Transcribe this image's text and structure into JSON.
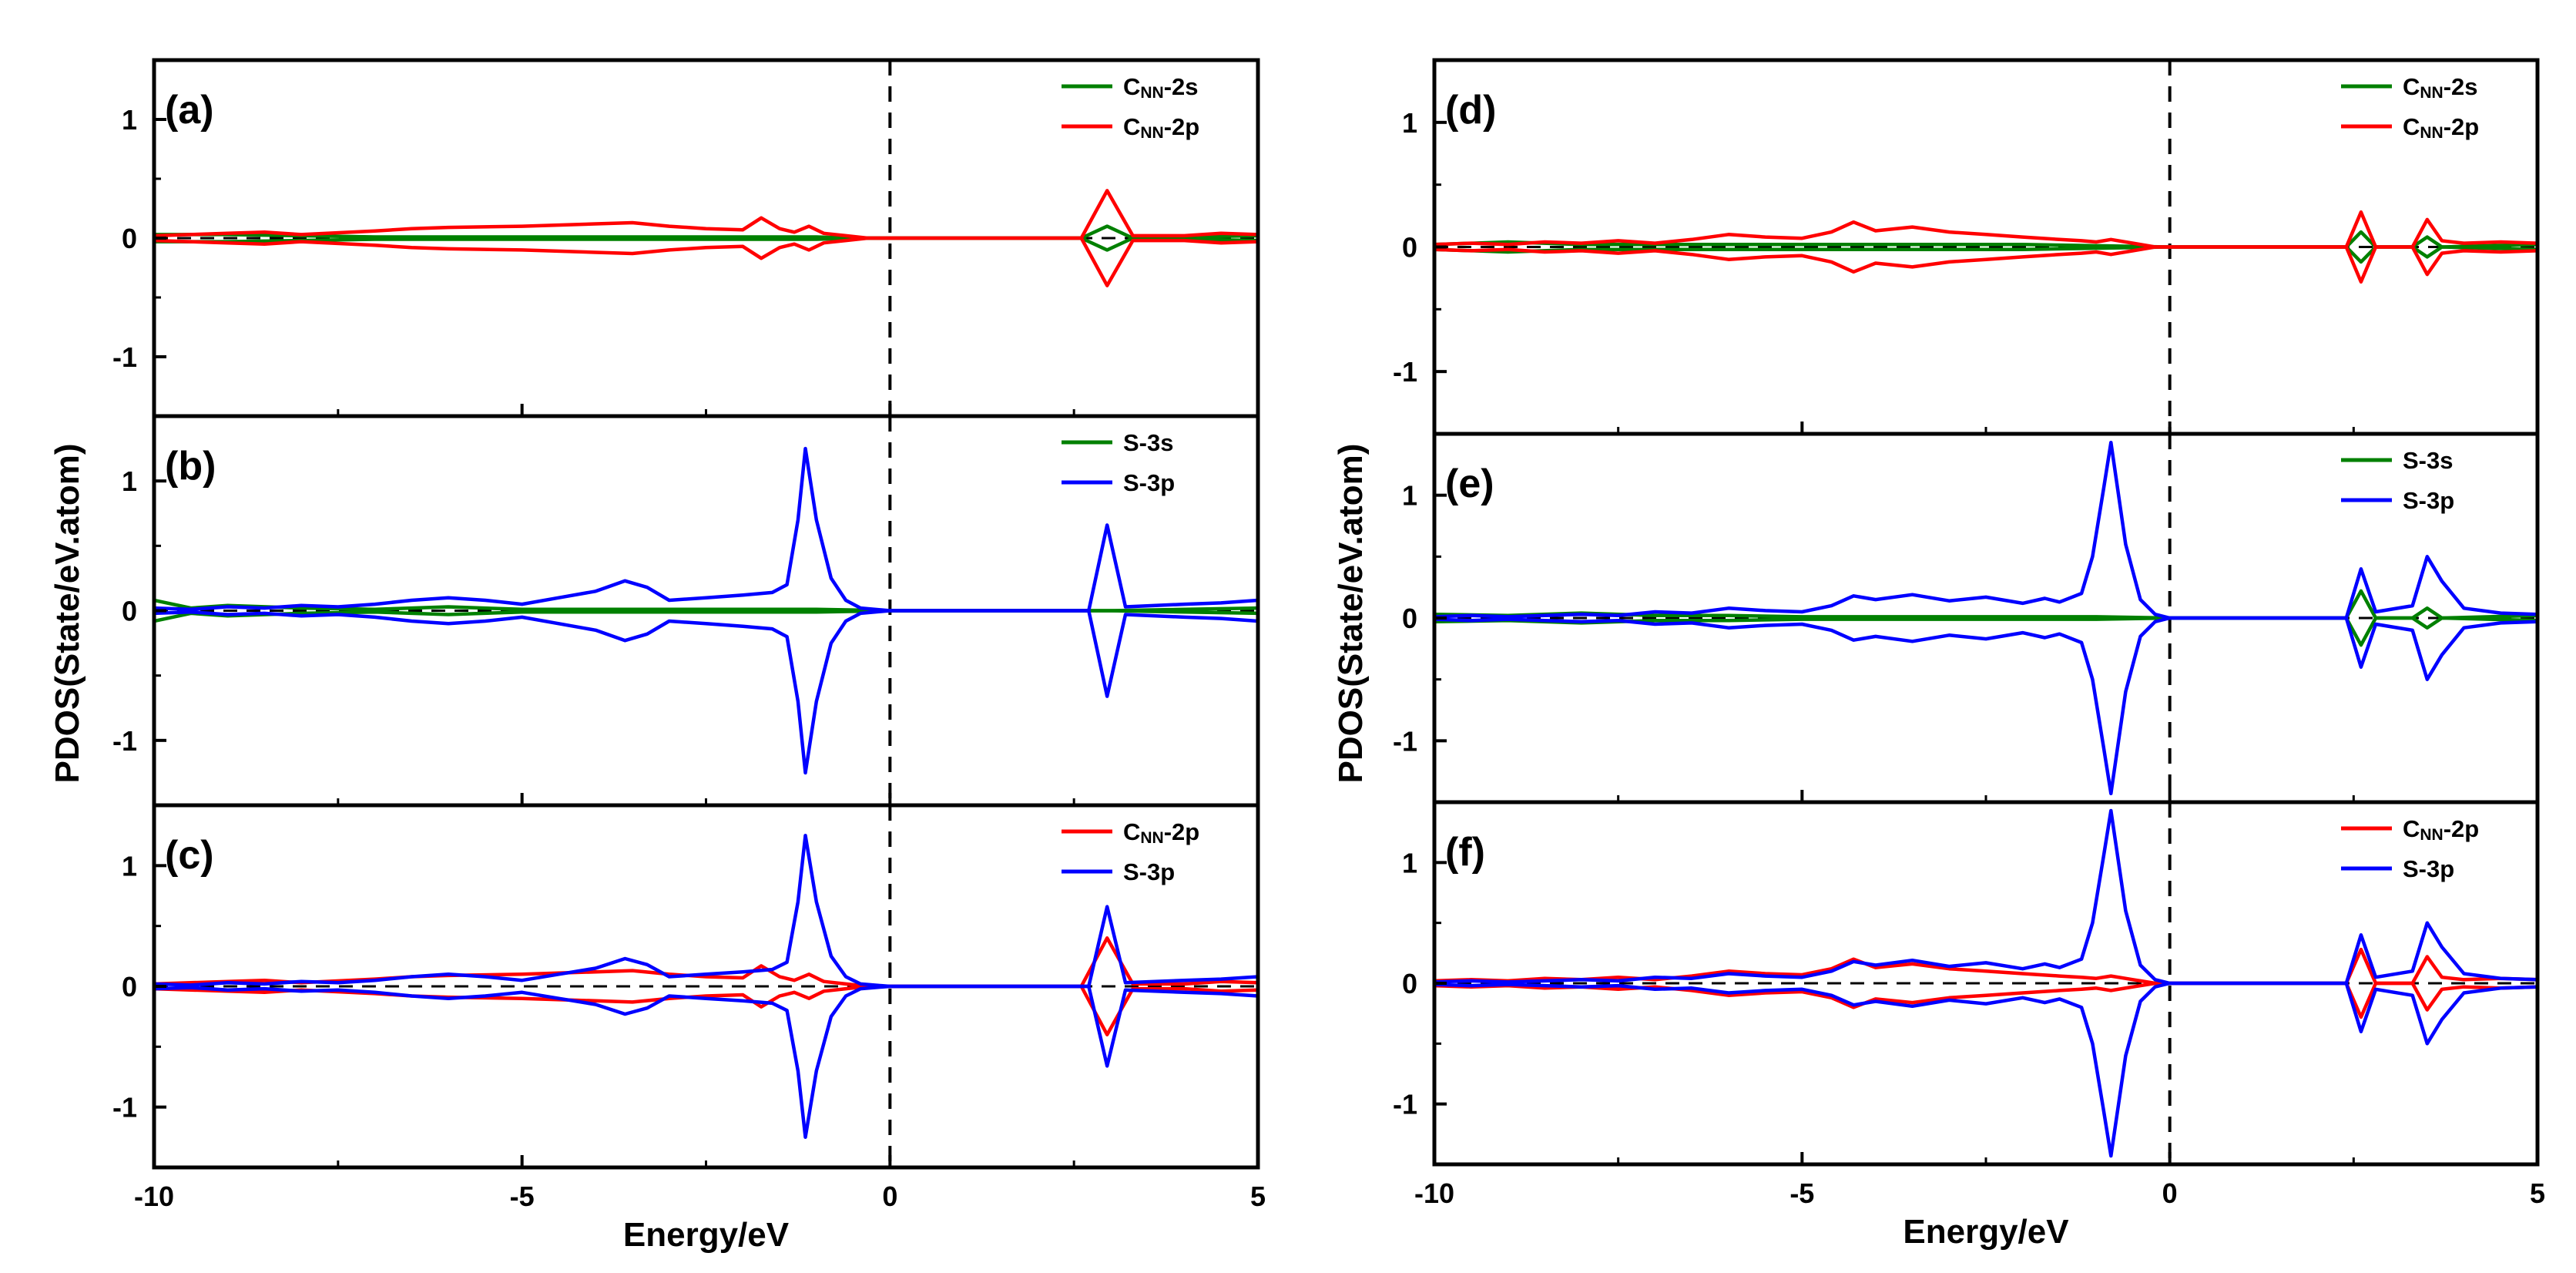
{
  "chart_data": [
    {
      "type": "line",
      "panel_label": "(a)",
      "x_label": "Energy/eV",
      "y_label": "PDOS(State/eV.atom)",
      "xlim": [
        -10,
        5
      ],
      "ylim": [
        -1.5,
        1.5
      ],
      "x_ticks": [
        "-10",
        "-5",
        "0",
        "5"
      ],
      "y_ticks": [
        "1",
        "0",
        "-1"
      ],
      "fermi_level_line": 0,
      "legend_position": "top-right",
      "spin_symmetric": true,
      "series": [
        {
          "name_main": "C",
          "name_sub": "NN",
          "name_suffix": "-2s",
          "color": "#008000",
          "x": [
            -10,
            -9.0,
            -8.0,
            -7.0,
            -6.0,
            -5.0,
            -4.0,
            -3.0,
            -2.0,
            -1.0,
            -0.5,
            0,
            2.6,
            2.95,
            3.3,
            4.0,
            5.0
          ],
          "y": [
            0.03,
            0.03,
            0.02,
            0.01,
            0.01,
            0.01,
            0.01,
            0.01,
            0.01,
            0.01,
            0,
            0,
            0,
            0.1,
            0,
            0.01,
            0.02
          ]
        },
        {
          "name_main": "C",
          "name_sub": "NN",
          "name_suffix": "-2p",
          "color": "#ff0000",
          "x": [
            -10,
            -9.0,
            -8.5,
            -8.0,
            -7.0,
            -6.5,
            -6.0,
            -5.0,
            -4.0,
            -3.5,
            -3.0,
            -2.5,
            -2.0,
            -1.75,
            -1.5,
            -1.3,
            -1.1,
            -0.9,
            -0.6,
            -0.3,
            0,
            2.6,
            2.95,
            3.3,
            4.0,
            4.5,
            5.0
          ],
          "y": [
            0.02,
            0.04,
            0.05,
            0.03,
            0.06,
            0.08,
            0.09,
            0.1,
            0.12,
            0.13,
            0.1,
            0.08,
            0.07,
            0.17,
            0.08,
            0.05,
            0.1,
            0.04,
            0.02,
            0,
            0,
            0,
            0.4,
            0.02,
            0.02,
            0.04,
            0.03
          ]
        }
      ]
    },
    {
      "type": "line",
      "panel_label": "(b)",
      "x_label": "Energy/eV",
      "xlim": [
        -10,
        5
      ],
      "ylim": [
        -1.5,
        1.5
      ],
      "x_ticks": [
        "-10",
        "-5",
        "0",
        "5"
      ],
      "y_ticks": [
        "1",
        "0",
        "-1"
      ],
      "fermi_level_line": 0,
      "legend_position": "top-right",
      "spin_symmetric": true,
      "series": [
        {
          "name_main": "S-3s",
          "name_sub": "",
          "name_suffix": "",
          "color": "#008000",
          "x": [
            -10,
            -9.5,
            -9.0,
            -8.0,
            -7.0,
            -6.0,
            -5.0,
            -4.0,
            -3.0,
            -2.0,
            -1.0,
            0,
            3.0,
            5.0
          ],
          "y": [
            0.08,
            0.02,
            0.04,
            0.02,
            0.01,
            0.03,
            0.01,
            0.01,
            0.01,
            0.01,
            0.01,
            0,
            0,
            0.02
          ]
        },
        {
          "name_main": "S-3p",
          "name_sub": "",
          "name_suffix": "",
          "color": "#0000ff",
          "x": [
            -10,
            -9.5,
            -9.0,
            -8.5,
            -8.0,
            -7.5,
            -7.0,
            -6.5,
            -6.0,
            -5.5,
            -5.0,
            -4.5,
            -4.0,
            -3.6,
            -3.3,
            -3.0,
            -2.5,
            -2.0,
            -1.6,
            -1.4,
            -1.25,
            -1.15,
            -1.0,
            -0.8,
            -0.6,
            -0.4,
            0,
            2.7,
            2.95,
            3.2,
            4.0,
            4.5,
            5.0
          ],
          "y": [
            0.02,
            0.01,
            0.03,
            0.02,
            0.04,
            0.03,
            0.05,
            0.08,
            0.1,
            0.08,
            0.05,
            0.1,
            0.15,
            0.23,
            0.18,
            0.08,
            0.1,
            0.12,
            0.14,
            0.2,
            0.7,
            1.25,
            0.7,
            0.25,
            0.08,
            0.02,
            0,
            0,
            0.66,
            0.03,
            0.05,
            0.06,
            0.08
          ]
        }
      ]
    },
    {
      "type": "line",
      "panel_label": "(c)",
      "x_label": "Energy/eV",
      "xlim": [
        -10,
        5
      ],
      "ylim": [
        -1.5,
        1.5
      ],
      "x_ticks": [
        "-10",
        "-5",
        "0",
        "5"
      ],
      "y_ticks": [
        "1",
        "0",
        "-1"
      ],
      "fermi_level_line": 0,
      "legend_position": "top-right",
      "spin_symmetric": true,
      "series": [
        {
          "name_main": "C",
          "name_sub": "NN",
          "name_suffix": "-2p",
          "color": "#ff0000",
          "x": [
            -10,
            -9.0,
            -8.5,
            -8.0,
            -7.0,
            -6.5,
            -6.0,
            -5.0,
            -4.0,
            -3.5,
            -3.0,
            -2.5,
            -2.0,
            -1.75,
            -1.5,
            -1.3,
            -1.1,
            -0.9,
            -0.6,
            -0.3,
            0,
            2.6,
            2.95,
            3.3,
            4.0,
            4.5,
            5.0
          ],
          "y": [
            0.02,
            0.04,
            0.05,
            0.03,
            0.06,
            0.08,
            0.09,
            0.1,
            0.12,
            0.13,
            0.1,
            0.08,
            0.07,
            0.17,
            0.08,
            0.05,
            0.1,
            0.04,
            0.02,
            0,
            0,
            0,
            0.4,
            0.02,
            0.02,
            0.04,
            0.03
          ]
        },
        {
          "name_main": "S-3p",
          "name_sub": "",
          "name_suffix": "",
          "color": "#0000ff",
          "x": [
            -10,
            -9.5,
            -9.0,
            -8.5,
            -8.0,
            -7.5,
            -7.0,
            -6.5,
            -6.0,
            -5.5,
            -5.0,
            -4.5,
            -4.0,
            -3.6,
            -3.3,
            -3.0,
            -2.5,
            -2.0,
            -1.6,
            -1.4,
            -1.25,
            -1.15,
            -1.0,
            -0.8,
            -0.6,
            -0.4,
            0,
            2.7,
            2.95,
            3.2,
            4.0,
            4.5,
            5.0
          ],
          "y": [
            0.02,
            0.01,
            0.03,
            0.02,
            0.04,
            0.03,
            0.05,
            0.08,
            0.1,
            0.08,
            0.05,
            0.1,
            0.15,
            0.23,
            0.18,
            0.08,
            0.1,
            0.12,
            0.14,
            0.2,
            0.7,
            1.25,
            0.7,
            0.25,
            0.08,
            0.02,
            0,
            0,
            0.66,
            0.03,
            0.05,
            0.06,
            0.08
          ]
        }
      ]
    },
    {
      "type": "line",
      "panel_label": "(d)",
      "x_label": "Energy/eV",
      "y_label": "PDOS(State/eV.atom)",
      "xlim": [
        -10,
        5
      ],
      "ylim": [
        -1.5,
        1.5
      ],
      "x_ticks": [
        "-10",
        "-5",
        "0",
        "5"
      ],
      "y_ticks": [
        "1",
        "0",
        "-1"
      ],
      "fermi_level_line": 0,
      "legend_position": "top-right",
      "spin_symmetric": true,
      "series": [
        {
          "name_main": "C",
          "name_sub": "NN",
          "name_suffix": "-2s",
          "color": "#008000",
          "x": [
            -10,
            -9.0,
            -8.0,
            -7.0,
            -6.0,
            -5.0,
            -4.0,
            -3.0,
            -2.0,
            -1.0,
            0,
            2.4,
            2.6,
            2.8,
            3.3,
            3.5,
            3.7,
            5.0
          ],
          "y": [
            0.02,
            0.04,
            0.02,
            0.02,
            0.02,
            0.02,
            0.02,
            0.02,
            0.02,
            0.01,
            0,
            0,
            0.12,
            0,
            0,
            0.08,
            0,
            0.02
          ]
        },
        {
          "name_main": "C",
          "name_sub": "NN",
          "name_suffix": "-2p",
          "color": "#ff0000",
          "x": [
            -10,
            -9.5,
            -9.0,
            -8.5,
            -8.0,
            -7.5,
            -7.0,
            -6.5,
            -6.0,
            -5.5,
            -5.0,
            -4.6,
            -4.3,
            -4.0,
            -3.5,
            -3.0,
            -2.5,
            -2.0,
            -1.5,
            -1.2,
            -1.0,
            -0.8,
            -0.5,
            -0.2,
            0,
            2.4,
            2.6,
            2.8,
            3.3,
            3.5,
            3.7,
            4.0,
            4.5,
            5.0
          ],
          "y": [
            0.02,
            0.03,
            0.02,
            0.04,
            0.03,
            0.05,
            0.03,
            0.06,
            0.1,
            0.08,
            0.07,
            0.12,
            0.2,
            0.13,
            0.16,
            0.12,
            0.1,
            0.08,
            0.06,
            0.05,
            0.04,
            0.06,
            0.03,
            0,
            0,
            0,
            0.28,
            0,
            0,
            0.22,
            0.05,
            0.03,
            0.04,
            0.03
          ]
        }
      ]
    },
    {
      "type": "line",
      "panel_label": "(e)",
      "x_label": "Energy/eV",
      "xlim": [
        -10,
        5
      ],
      "ylim": [
        -1.5,
        1.5
      ],
      "x_ticks": [
        "-10",
        "-5",
        "0",
        "5"
      ],
      "y_ticks": [
        "1",
        "0",
        "-1"
      ],
      "fermi_level_line": 0,
      "legend_position": "top-right",
      "spin_symmetric": true,
      "series": [
        {
          "name_main": "S-3s",
          "name_sub": "",
          "name_suffix": "",
          "color": "#008000",
          "x": [
            -10,
            -9.0,
            -8.0,
            -7.0,
            -6.0,
            -5.0,
            -4.0,
            -3.0,
            -2.0,
            -1.0,
            0,
            2.4,
            2.6,
            2.8,
            3.3,
            3.5,
            3.7,
            5.0
          ],
          "y": [
            0.03,
            0.02,
            0.04,
            0.02,
            0.02,
            0.01,
            0.01,
            0.01,
            0.01,
            0.01,
            0,
            0,
            0.22,
            0,
            0,
            0.08,
            0,
            0.02
          ]
        },
        {
          "name_main": "S-3p",
          "name_sub": "",
          "name_suffix": "",
          "color": "#0000ff",
          "x": [
            -10,
            -9.5,
            -9.0,
            -8.5,
            -8.0,
            -7.5,
            -7.0,
            -6.5,
            -6.0,
            -5.5,
            -5.0,
            -4.6,
            -4.3,
            -4.0,
            -3.5,
            -3.0,
            -2.5,
            -2.0,
            -1.7,
            -1.5,
            -1.2,
            -1.05,
            -0.9,
            -0.8,
            -0.6,
            -0.4,
            -0.2,
            0,
            2.4,
            2.6,
            2.8,
            3.3,
            3.5,
            3.7,
            4.0,
            4.5,
            5.0
          ],
          "y": [
            0.01,
            0.02,
            0.01,
            0.02,
            0.03,
            0.02,
            0.05,
            0.04,
            0.08,
            0.06,
            0.05,
            0.1,
            0.18,
            0.15,
            0.19,
            0.14,
            0.17,
            0.12,
            0.16,
            0.13,
            0.2,
            0.5,
            1.05,
            1.43,
            0.6,
            0.15,
            0.03,
            0,
            0,
            0.4,
            0.05,
            0.1,
            0.5,
            0.3,
            0.08,
            0.04,
            0.03
          ]
        }
      ]
    },
    {
      "type": "line",
      "panel_label": "(f)",
      "x_label": "Energy/eV",
      "xlim": [
        -10,
        5
      ],
      "ylim": [
        -1.5,
        1.5
      ],
      "x_ticks": [
        "-10",
        "-5",
        "0",
        "5"
      ],
      "y_ticks": [
        "1",
        "0",
        "-1"
      ],
      "fermi_level_line": 0,
      "legend_position": "top-right",
      "spin_symmetric": true,
      "series": [
        {
          "name_main": "C",
          "name_sub": "NN",
          "name_suffix": "-2p",
          "color": "#ff0000",
          "x": [
            -10,
            -9.5,
            -9.0,
            -8.5,
            -8.0,
            -7.5,
            -7.0,
            -6.5,
            -6.0,
            -5.5,
            -5.0,
            -4.6,
            -4.3,
            -4.0,
            -3.5,
            -3.0,
            -2.5,
            -2.0,
            -1.5,
            -1.2,
            -1.0,
            -0.8,
            -0.5,
            -0.2,
            0,
            2.4,
            2.6,
            2.8,
            3.3,
            3.5,
            3.7,
            4.0,
            4.5,
            5.0
          ],
          "y": [
            0.02,
            0.03,
            0.02,
            0.04,
            0.03,
            0.05,
            0.03,
            0.06,
            0.1,
            0.08,
            0.07,
            0.12,
            0.2,
            0.13,
            0.16,
            0.12,
            0.1,
            0.08,
            0.06,
            0.05,
            0.04,
            0.06,
            0.03,
            0,
            0,
            0,
            0.28,
            0,
            0,
            0.22,
            0.05,
            0.03,
            0.04,
            0.03
          ]
        },
        {
          "name_main": "S-3p",
          "name_sub": "",
          "name_suffix": "",
          "color": "#0000ff",
          "x": [
            -10,
            -9.5,
            -9.0,
            -8.5,
            -8.0,
            -7.5,
            -7.0,
            -6.5,
            -6.0,
            -5.5,
            -5.0,
            -4.6,
            -4.3,
            -4.0,
            -3.5,
            -3.0,
            -2.5,
            -2.0,
            -1.7,
            -1.5,
            -1.2,
            -1.05,
            -0.9,
            -0.8,
            -0.6,
            -0.4,
            -0.2,
            0,
            2.4,
            2.6,
            2.8,
            3.3,
            3.5,
            3.7,
            4.0,
            4.5,
            5.0
          ],
          "y": [
            0.01,
            0.02,
            0.01,
            0.02,
            0.03,
            0.02,
            0.05,
            0.04,
            0.08,
            0.06,
            0.05,
            0.1,
            0.18,
            0.15,
            0.19,
            0.14,
            0.17,
            0.12,
            0.16,
            0.13,
            0.2,
            0.5,
            1.05,
            1.43,
            0.6,
            0.15,
            0.03,
            0,
            0,
            0.4,
            0.05,
            0.1,
            0.5,
            0.3,
            0.08,
            0.04,
            0.03
          ]
        }
      ]
    }
  ]
}
